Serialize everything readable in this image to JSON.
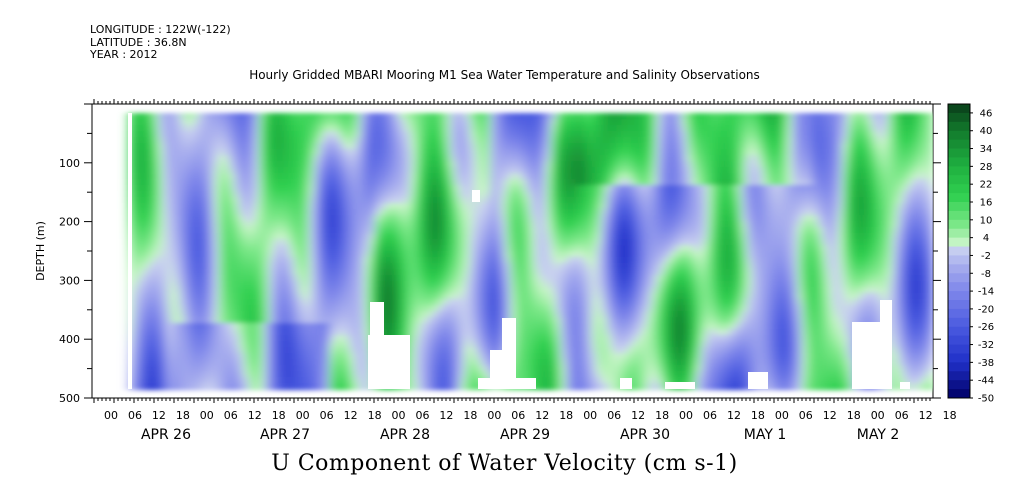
{
  "header": {
    "longitude": "LONGITUDE : 122W(-122)",
    "latitude": "LATITUDE : 36.8N",
    "year": "YEAR : 2012"
  },
  "chart_data": {
    "type": "heatmap",
    "title": "Hourly Gridded MBARI Mooring M1 Sea Water Temperature and Salinity Observations",
    "subtitle": "U Component of Water Velocity (cm s-1)",
    "ylabel": "DEPTH (m)",
    "xlabel": "",
    "y_axis": {
      "range": [
        0,
        500
      ],
      "inverted": true,
      "ticks": [
        100,
        200,
        300,
        400,
        500
      ],
      "tick_labels": [
        "100",
        "200",
        "300",
        "400",
        "500"
      ]
    },
    "x_axis": {
      "hour_ticks": [
        "00",
        "06",
        "12",
        "18",
        "00",
        "06",
        "12",
        "18",
        "00",
        "06",
        "12",
        "18",
        "00",
        "06",
        "12",
        "18",
        "00",
        "06",
        "12",
        "18",
        "00",
        "06",
        "12",
        "18",
        "00",
        "06",
        "12",
        "18",
        "00",
        "06",
        "12",
        "18",
        "00",
        "06",
        "12",
        "18"
      ],
      "day_labels": [
        "APR 26",
        "APR 27",
        "APR 28",
        "APR 29",
        "APR 30",
        "MAY  1",
        "MAY  2"
      ]
    },
    "colorbar": {
      "labels": [
        "46",
        "40",
        "34",
        "28",
        "22",
        "16",
        "10",
        "4",
        "-2",
        "-8",
        "-14",
        "-20",
        "-26",
        "-32",
        "-38",
        "-44",
        "-50"
      ],
      "range": [
        -50,
        49
      ],
      "colors": {
        "high": "#0a3d1a",
        "mid_high": "#22c84a",
        "mid": "#c8f5c8",
        "mid_low": "#aab0ee",
        "low": "#000066"
      }
    },
    "grid": false
  }
}
